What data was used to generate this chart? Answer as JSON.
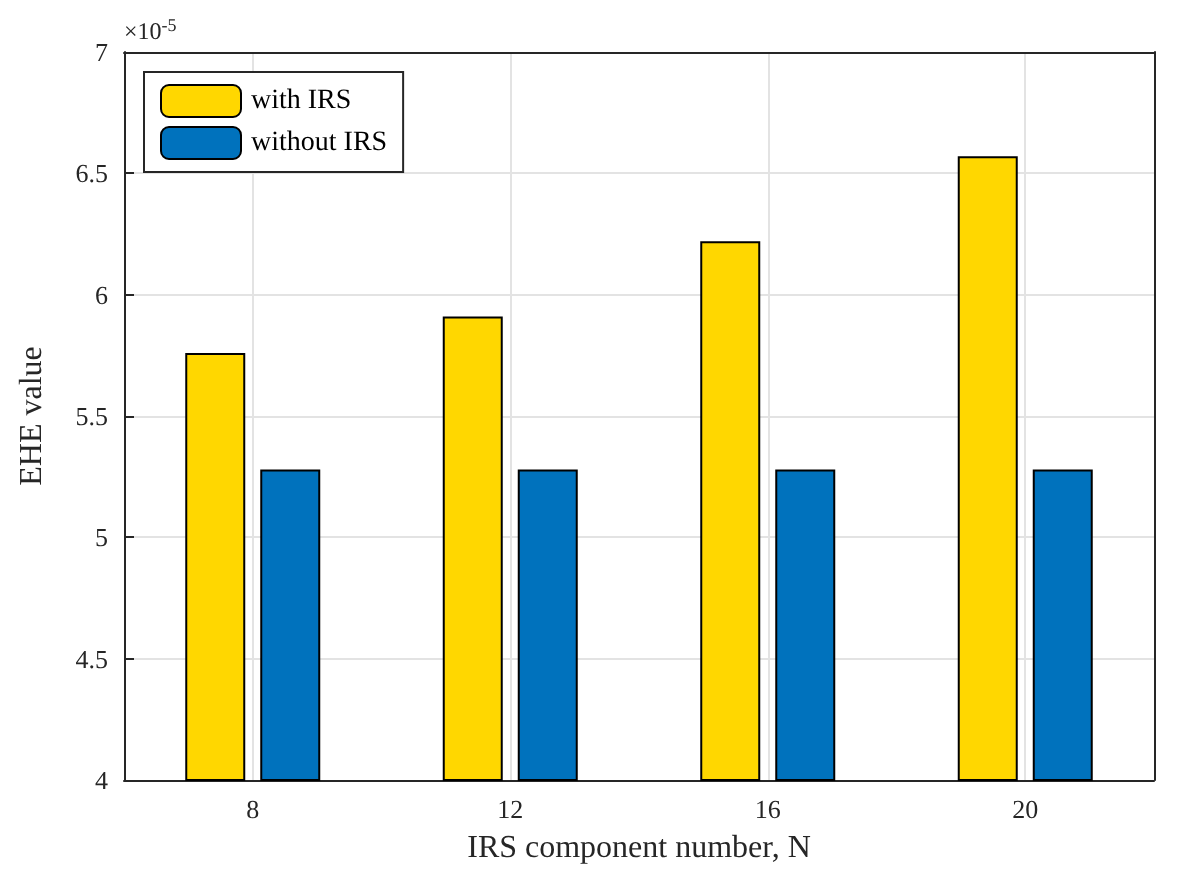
{
  "chart_data": {
    "type": "bar",
    "xlabel": "IRS component number, N",
    "ylabel": "EHE value",
    "categories": [
      "8",
      "12",
      "16",
      "20"
    ],
    "series": [
      {
        "name": "with IRS",
        "color": "#ffd700",
        "values": [
          5.76,
          5.91,
          6.22,
          6.57
        ]
      },
      {
        "name": "without IRS",
        "color": "#0072bd",
        "values": [
          5.28,
          5.28,
          5.28,
          5.28
        ]
      }
    ],
    "ylim": [
      4,
      7
    ],
    "yticks": [
      4,
      4.5,
      5,
      5.5,
      6,
      6.5,
      7
    ],
    "grid": true,
    "legend": "top left",
    "annotations": [
      "×10$^{-5}$"
    ]
  }
}
